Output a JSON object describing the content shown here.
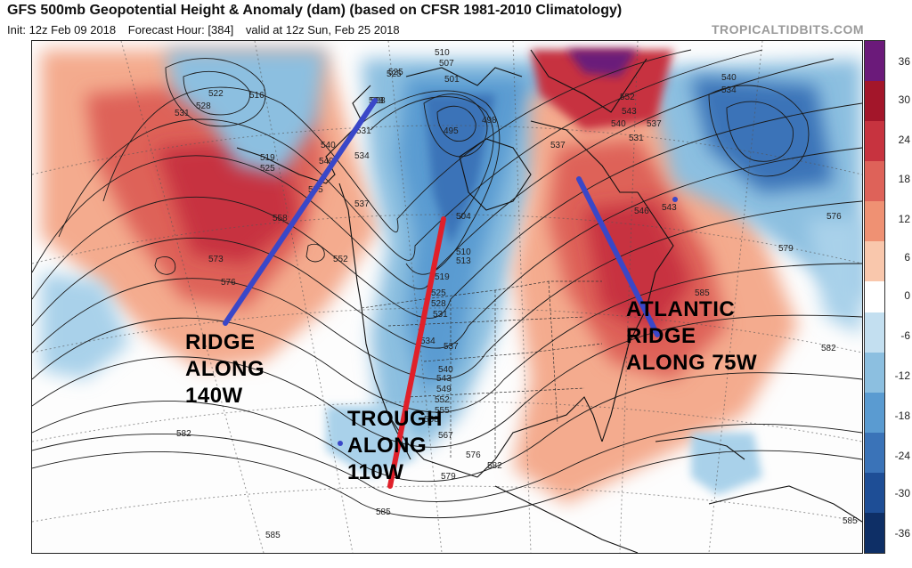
{
  "header": {
    "title": "GFS 500mb Geopotential Height & Anomaly (dam) (based on CFSR 1981-2010 Climatology)",
    "init": "Init: 12z Feb 09 2018",
    "forecast_hour": "Forecast Hour: [384]",
    "valid": "valid at 12z Sun, Feb 25 2018",
    "brand": "TROPICALTIDBITS.COM"
  },
  "colorbar": {
    "ticks": [
      "36",
      "30",
      "24",
      "18",
      "12",
      "6",
      "0",
      "-6",
      "-12",
      "-18",
      "-24",
      "-30",
      "-36"
    ],
    "colors": [
      "#6b1a7a",
      "#a3162a",
      "#c7333f",
      "#de6259",
      "#ef9173",
      "#f9c7ac",
      "#ffffff",
      "#c3dff0",
      "#8cbfe0",
      "#5a9bd1",
      "#3a73b8",
      "#1e4e96",
      "#0e2f66"
    ]
  },
  "contour_labels": [
    "510",
    "507",
    "501",
    "498",
    "495",
    "504",
    "510",
    "513",
    "519",
    "525",
    "528",
    "531",
    "534",
    "537",
    "540",
    "543",
    "549",
    "552",
    "555",
    "558",
    "567",
    "576",
    "582",
    "579",
    "585",
    "516",
    "522",
    "528",
    "531",
    "519",
    "525",
    "540",
    "549",
    "555",
    "558",
    "573",
    "576",
    "552",
    "582",
    "585",
    "537",
    "528",
    "525",
    "543",
    "552",
    "531",
    "537",
    "540",
    "546",
    "543",
    "534",
    "540",
    "576",
    "579",
    "585",
    "582",
    "585",
    "525",
    "528",
    "531",
    "534",
    "537"
  ],
  "annotations": {
    "ridge_140": [
      "RIDGE",
      "ALONG",
      "140W"
    ],
    "trough_110": [
      "TROUGH",
      "ALONG",
      "110W"
    ],
    "ridge_75": [
      "ATLANTIC",
      "RIDGE",
      "ALONG 75W"
    ]
  },
  "axis_lines": {
    "ridge_140_color": "#3a47c8",
    "trough_110_color": "#e0202a",
    "ridge_75_color": "#3a47c8"
  }
}
